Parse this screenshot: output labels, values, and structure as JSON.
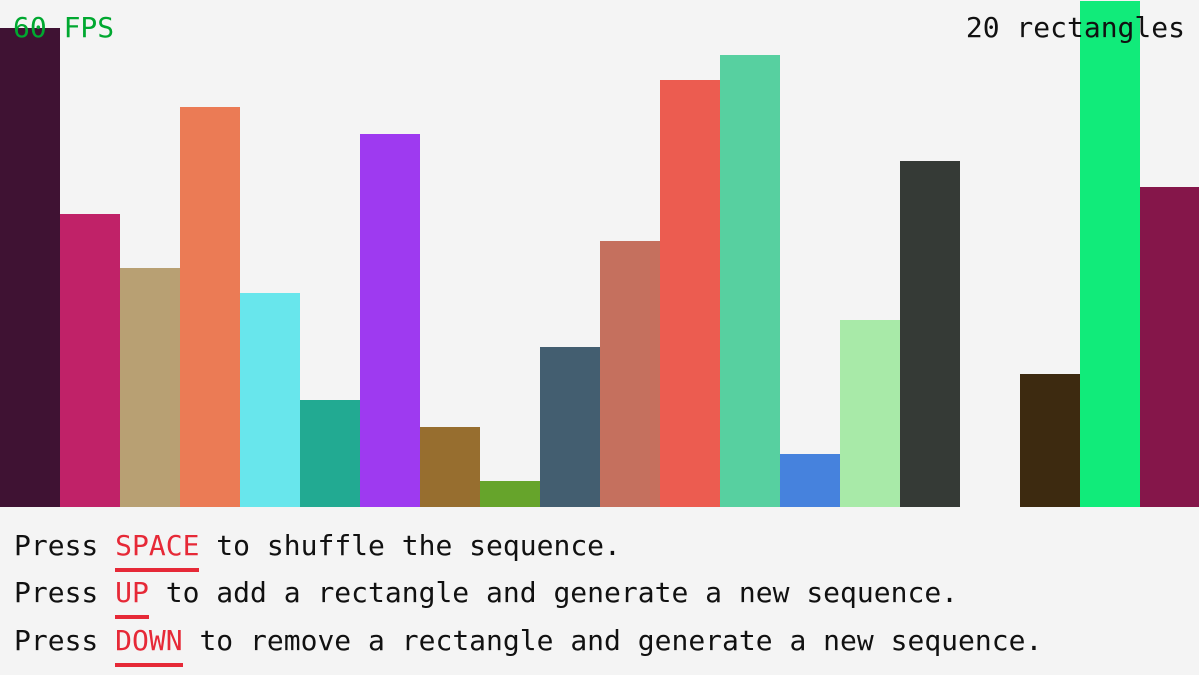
{
  "fps_label": "60 FPS",
  "count_label": "20 rectangles",
  "instructions": [
    {
      "prefix": "Press ",
      "key": "SPACE",
      "suffix": " to shuffle the sequence."
    },
    {
      "prefix": "Press ",
      "key": "UP",
      "suffix": " to add a rectangle and generate a new sequence."
    },
    {
      "prefix": "Press ",
      "key": "DOWN",
      "suffix": " to remove a rectangle and generate a new sequence."
    }
  ],
  "colors": {
    "fps": "#00a830",
    "key": "#e62937",
    "background": "#f4f4f4"
  },
  "rectangles": [
    {
      "value": 479,
      "color": "#3f1233"
    },
    {
      "value": 293,
      "color": "#c02268"
    },
    {
      "value": 239,
      "color": "#b8a073"
    },
    {
      "value": 400,
      "color": "#eb7b55"
    },
    {
      "value": 214,
      "color": "#68e6ec"
    },
    {
      "value": 107,
      "color": "#22aa92"
    },
    {
      "value": 373,
      "color": "#9e3af0"
    },
    {
      "value": 80,
      "color": "#976e2f"
    },
    {
      "value": 26,
      "color": "#66a42b"
    },
    {
      "value": 160,
      "color": "#435e70"
    },
    {
      "value": 266,
      "color": "#c5705e"
    },
    {
      "value": 427,
      "color": "#ec5c50"
    },
    {
      "value": 452,
      "color": "#57d0a0"
    },
    {
      "value": 53,
      "color": "#4682dd"
    },
    {
      "value": 187,
      "color": "#a8eaa8"
    },
    {
      "value": 346,
      "color": "#353a36"
    },
    {
      "value": 0,
      "color": "#f4f4f4"
    },
    {
      "value": 133,
      "color": "#3d2a10"
    },
    {
      "value": 506,
      "color": "#11eb7a"
    },
    {
      "value": 320,
      "color": "#85164a"
    }
  ]
}
